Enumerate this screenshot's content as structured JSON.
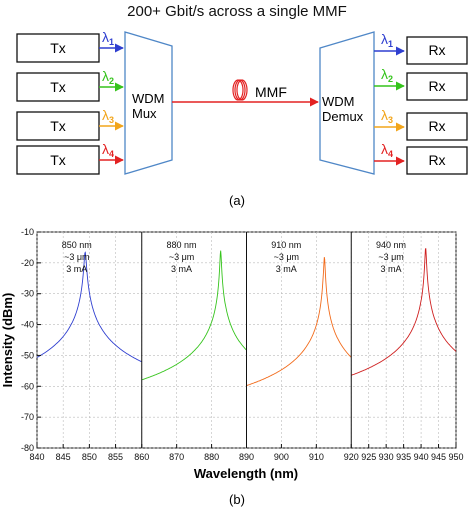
{
  "diagram": {
    "title": "200+ Gbit/s across a single MMF",
    "tx_label": "Tx",
    "rx_label": "Rx",
    "mux_label_1": "WDM",
    "mux_label_2": "Mux",
    "demux_label_1": "WDM",
    "demux_label_2": "Demux",
    "fiber_label": "MMF",
    "lambda_symbol": "λ",
    "channels": [
      {
        "sub": "1",
        "color": "#2f3fd0"
      },
      {
        "sub": "2",
        "color": "#35c41c"
      },
      {
        "sub": "3",
        "color": "#f2a51b"
      },
      {
        "sub": "4",
        "color": "#e32222"
      }
    ],
    "fiber_color": "#e32222",
    "box_color": "#4f87c7",
    "caption": "(a)"
  },
  "chart_data": {
    "type": "line",
    "caption": "(b)",
    "xlabel": "Wavelength (nm)",
    "ylabel": "Intensity (dBm)",
    "ylim": [
      -80,
      -10
    ],
    "yticks": [
      -80,
      -70,
      -60,
      -50,
      -40,
      -30,
      -20,
      -10
    ],
    "panels": [
      {
        "xlim": [
          840,
          860
        ],
        "xticks": [
          840,
          845,
          850,
          855
        ],
        "color": "#2f3fd0",
        "note": [
          "850 nm",
          "~3 μm",
          "3 mA"
        ],
        "peaks": [
          [
            849.2,
            -16.5
          ],
          [
            847.6,
            -67
          ],
          [
            846.3,
            -72
          ],
          [
            848.4,
            -70
          ]
        ]
      },
      {
        "xlim": [
          860,
          890
        ],
        "xticks": [
          860,
          870,
          880
        ],
        "color": "#35c41c",
        "note": [
          "880 nm",
          "~3 μm",
          "3 mA"
        ],
        "peaks": [
          [
            882.6,
            -16
          ],
          [
            880.8,
            -70
          ],
          [
            879.5,
            -73
          ]
        ]
      },
      {
        "xlim": [
          890,
          920
        ],
        "xticks": [
          890,
          900,
          910
        ],
        "color": "#f26b1b",
        "note": [
          "910 nm",
          "~3 μm",
          "3 mA"
        ],
        "peaks": [
          [
            912.3,
            -18
          ],
          [
            910.6,
            -63
          ],
          [
            909.3,
            -68
          ]
        ]
      },
      {
        "xlim": [
          920,
          950
        ],
        "xticks": [
          920,
          925,
          930,
          935,
          940,
          945,
          950
        ],
        "color": "#cf1f1f",
        "note": [
          "940 nm",
          "~3 μm",
          "3 mA"
        ],
        "peaks": [
          [
            941.3,
            -15
          ],
          [
            939.4,
            -65
          ],
          [
            938.3,
            -67
          ],
          [
            937.2,
            -71
          ]
        ]
      }
    ]
  }
}
